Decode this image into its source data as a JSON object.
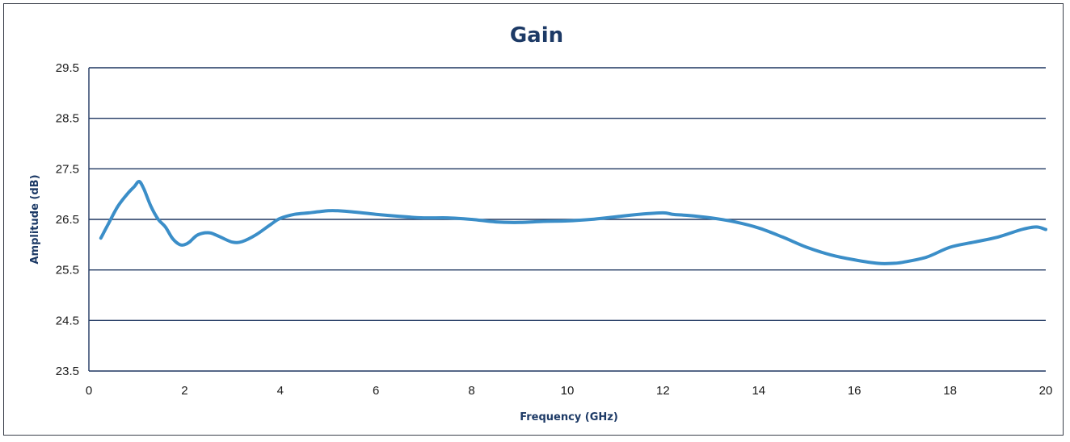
{
  "chart_data": {
    "type": "line",
    "title": "Gain",
    "xlabel": "Frequency (GHz)",
    "ylabel": "Amplitude (dB)",
    "xlim": [
      0,
      20
    ],
    "ylim": [
      23.5,
      29.5
    ],
    "xticks": [
      0,
      2,
      4,
      6,
      8,
      10,
      12,
      14,
      16,
      18,
      20
    ],
    "yticks": [
      23.5,
      24.5,
      25.5,
      26.5,
      27.5,
      28.5,
      29.5
    ],
    "ytick_labels": [
      "23.5",
      "24.5",
      "25.5",
      "26.5",
      "27.5",
      "28.5",
      "29.5"
    ],
    "grid": "horizontal",
    "legend": "none",
    "line_color": "#3b8ec8",
    "series": [
      {
        "x": [
          0.25,
          0.4,
          0.6,
          0.8,
          0.95,
          1.05,
          1.15,
          1.3,
          1.45,
          1.6,
          1.75,
          1.9,
          2.0,
          2.1,
          2.25,
          2.4,
          2.55,
          2.75,
          3.0,
          3.2,
          3.5,
          3.8,
          4.0,
          4.3,
          4.6,
          5.0,
          5.2,
          5.5,
          6.0,
          6.5,
          7.0,
          7.5,
          8.0,
          8.5,
          9.0,
          9.5,
          10.0,
          10.5,
          11.0,
          11.5,
          12.0,
          12.2,
          12.5,
          13.0,
          13.5,
          14.0,
          14.5,
          15.0,
          15.5,
          16.0,
          16.5,
          16.8,
          17.0,
          17.5,
          18.0,
          18.5,
          19.0,
          19.5,
          19.8,
          20.0
        ],
        "y": [
          26.13,
          26.4,
          26.75,
          27.0,
          27.15,
          27.25,
          27.1,
          26.75,
          26.5,
          26.35,
          26.12,
          26.0,
          26.0,
          26.05,
          26.18,
          26.23,
          26.23,
          26.15,
          26.05,
          26.06,
          26.2,
          26.4,
          26.52,
          26.6,
          26.63,
          26.67,
          26.67,
          26.65,
          26.6,
          26.56,
          26.53,
          26.53,
          26.5,
          26.45,
          26.44,
          26.46,
          26.47,
          26.5,
          26.55,
          26.6,
          26.63,
          26.6,
          26.58,
          26.53,
          26.45,
          26.33,
          26.15,
          25.95,
          25.8,
          25.7,
          25.63,
          25.63,
          25.65,
          25.75,
          25.95,
          26.05,
          26.15,
          26.3,
          26.35,
          26.3
        ]
      }
    ]
  }
}
